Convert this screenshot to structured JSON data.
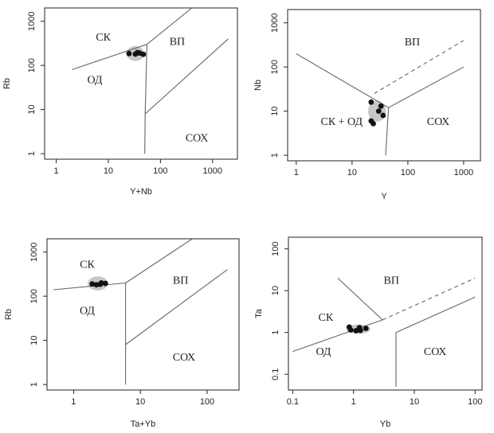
{
  "chart_data": [
    {
      "type": "scatter",
      "xscale": "log",
      "yscale": "log",
      "xlabel": "Y+Nb",
      "ylabel": "Rb",
      "xlim": [
        0.6,
        3000
      ],
      "ylim": [
        0.75,
        2000
      ],
      "xticks": [
        1,
        10,
        100,
        1000
      ],
      "xticklabels": [
        "1",
        "10",
        "100",
        "1000"
      ],
      "yticks": [
        1,
        10,
        100,
        1000
      ],
      "yticklabels": [
        "1",
        "10",
        "100",
        "1000"
      ],
      "regions": [
        {
          "label": "СК",
          "x": 8.0,
          "y": 420
        },
        {
          "label": "ВП",
          "x": 210,
          "y": 330
        },
        {
          "label": "ОД",
          "x": 5.5,
          "y": 45
        },
        {
          "label": "СОХ",
          "x": 500,
          "y": 2.2
        }
      ],
      "boundaries": [
        {
          "style": "solid",
          "points": [
            [
              2,
              80
            ],
            [
              55,
              300
            ]
          ]
        },
        {
          "style": "solid",
          "points": [
            [
              55,
              300
            ],
            [
              400,
              2000
            ]
          ]
        },
        {
          "style": "solid",
          "points": [
            [
              55,
              300
            ],
            [
              51,
              8
            ],
            [
              2000,
              400
            ]
          ]
        },
        {
          "style": "solid",
          "points": [
            [
              51,
              8
            ],
            [
              50,
              1
            ]
          ]
        }
      ],
      "field": {
        "cx": 33,
        "cy": 185,
        "rx": 0.17,
        "ry": 0.17
      },
      "points": [
        [
          25,
          185
        ],
        [
          33,
          180
        ],
        [
          40,
          190
        ],
        [
          47,
          178
        ],
        [
          36,
          195
        ]
      ]
    },
    {
      "type": "scatter",
      "xscale": "log",
      "yscale": "log",
      "xlabel": "Y",
      "ylabel": "Nb",
      "xlim": [
        0.7,
        2000
      ],
      "ylim": [
        0.75,
        2000
      ],
      "xticks": [
        1,
        10,
        100,
        1000
      ],
      "xticklabels": [
        "1",
        "10",
        "100",
        "1000"
      ],
      "yticks": [
        1,
        10,
        100,
        1000
      ],
      "yticklabels": [
        "1",
        "10",
        "100",
        "1000"
      ],
      "regions": [
        {
          "label": "ВП",
          "x": 120,
          "y": 350
        },
        {
          "label": "СК + ОД",
          "x": 6.5,
          "y": 5.5
        },
        {
          "label": "СОХ",
          "x": 350,
          "y": 5.5
        }
      ],
      "boundaries": [
        {
          "style": "solid",
          "points": [
            [
              1,
              200
            ],
            [
              45,
              12
            ]
          ]
        },
        {
          "style": "solid",
          "points": [
            [
              45,
              12
            ],
            [
              1000,
              100
            ]
          ]
        },
        {
          "style": "solid",
          "points": [
            [
              45,
              12
            ],
            [
              40,
              1
            ]
          ]
        },
        {
          "style": "dashed",
          "points": [
            [
              25,
              25
            ],
            [
              1000,
              400
            ]
          ]
        }
      ],
      "field": {
        "cx": 28,
        "cy": 10,
        "rx": 0.16,
        "ry": 0.24
      },
      "points": [
        [
          22,
          16
        ],
        [
          33,
          13
        ],
        [
          36,
          8
        ],
        [
          22,
          6
        ],
        [
          24,
          5.2
        ],
        [
          30,
          10
        ]
      ]
    },
    {
      "type": "scatter",
      "xscale": "log",
      "yscale": "log",
      "xlabel": "Ta+Yb",
      "ylabel": "Rb",
      "xlim": [
        0.4,
        300
      ],
      "ylim": [
        0.75,
        2000
      ],
      "xticks": [
        1,
        10,
        100
      ],
      "xticklabels": [
        "1",
        "10",
        "100"
      ],
      "yticks": [
        1,
        10,
        100,
        1000
      ],
      "yticklabels": [
        "1",
        "10",
        "100",
        "1000"
      ],
      "regions": [
        {
          "label": "СК",
          "x": 1.6,
          "y": 500
        },
        {
          "label": "ВП",
          "x": 40,
          "y": 220
        },
        {
          "label": "ОД",
          "x": 1.6,
          "y": 45
        },
        {
          "label": "СОХ",
          "x": 45,
          "y": 4
        }
      ],
      "boundaries": [
        {
          "style": "solid",
          "points": [
            [
              0.5,
              140
            ],
            [
              6,
              200
            ]
          ]
        },
        {
          "style": "solid",
          "points": [
            [
              6,
              200
            ],
            [
              60,
              2000
            ]
          ]
        },
        {
          "style": "solid",
          "points": [
            [
              6,
              200
            ],
            [
              6,
              1
            ]
          ]
        },
        {
          "style": "solid",
          "points": [
            [
              6,
              8
            ],
            [
              200,
              400
            ]
          ]
        }
      ],
      "field": {
        "cx": 2.3,
        "cy": 195,
        "rx": 0.15,
        "ry": 0.16
      },
      "points": [
        [
          1.9,
          190
        ],
        [
          2.2,
          182
        ],
        [
          2.5,
          186
        ],
        [
          3.0,
          195
        ],
        [
          2.6,
          200
        ]
      ]
    },
    {
      "type": "scatter",
      "xscale": "log",
      "yscale": "log",
      "xlabel": "Yb",
      "ylabel": "Ta",
      "xlim": [
        0.085,
        130
      ],
      "ylim": [
        0.042,
        190
      ],
      "xticks": [
        0.1,
        1,
        10,
        100
      ],
      "xticklabels": [
        "0.1",
        "1",
        "10",
        "100"
      ],
      "yticks": [
        0.1,
        1,
        10,
        100
      ],
      "yticklabels": [
        "0.1",
        "1",
        "10",
        "100"
      ],
      "regions": [
        {
          "label": "ВП",
          "x": 4.2,
          "y": 17
        },
        {
          "label": "СК",
          "x": 0.35,
          "y": 2.2
        },
        {
          "label": "ОД",
          "x": 0.32,
          "y": 0.33
        },
        {
          "label": "СОХ",
          "x": 22,
          "y": 0.33
        }
      ],
      "boundaries": [
        {
          "style": "solid",
          "points": [
            [
              0.1,
              0.35
            ],
            [
              3,
              2
            ]
          ]
        },
        {
          "style": "solid",
          "points": [
            [
              0.55,
              20
            ],
            [
              3,
              2
            ]
          ]
        },
        {
          "style": "dashed",
          "points": [
            [
              3,
              2
            ],
            [
              100,
              20
            ]
          ]
        },
        {
          "style": "solid",
          "points": [
            [
              5,
              1
            ],
            [
              100,
              7
            ]
          ]
        },
        {
          "style": "solid",
          "points": [
            [
              5,
              1
            ],
            [
              5,
              0.05
            ]
          ]
        }
      ],
      "field": {
        "cx": 1.2,
        "cy": 1.2,
        "rx": 0.2,
        "ry": 0.11
      },
      "points": [
        [
          0.85,
          1.35
        ],
        [
          0.9,
          1.15
        ],
        [
          1.1,
          1.1
        ],
        [
          1.3,
          1.12
        ],
        [
          1.6,
          1.25
        ],
        [
          1.25,
          1.3
        ]
      ]
    }
  ]
}
